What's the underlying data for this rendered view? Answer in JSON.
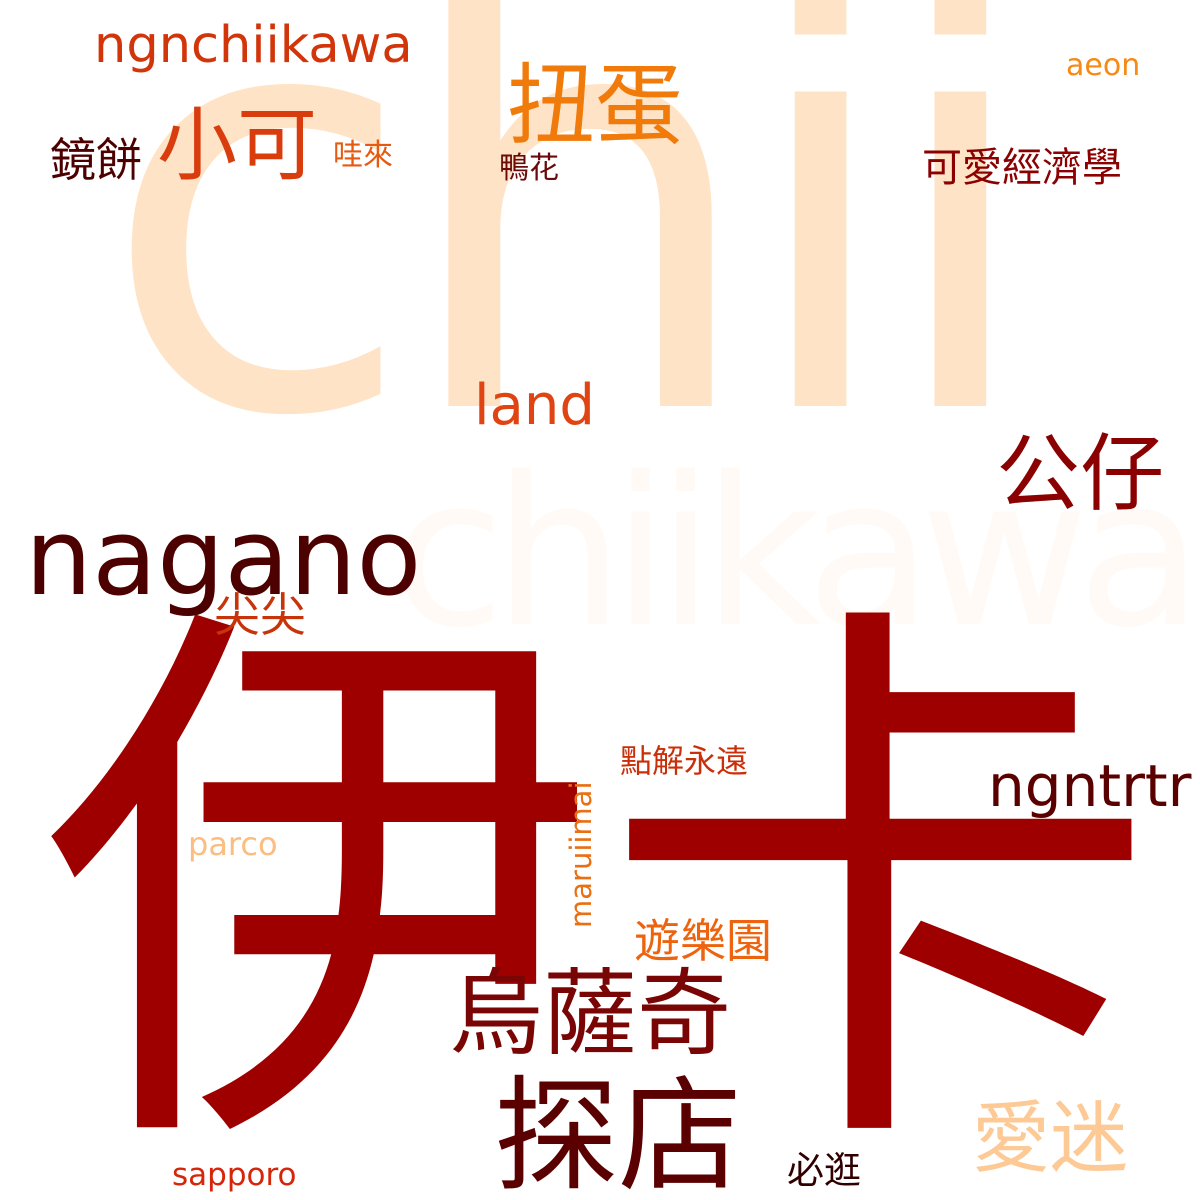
{
  "words": [
    {
      "id": "chii",
      "text": "chii",
      "color": "#ffe3c6"
    },
    {
      "id": "chiikawa",
      "text": "chiikawa",
      "color": "#fffaf5"
    },
    {
      "id": "ika",
      "text": "伊卡",
      "color": "#9e0000"
    },
    {
      "id": "ngnchiikawa",
      "text": "ngnchiikawa",
      "color": "#d2350a"
    },
    {
      "id": "niudan",
      "text": "扭蛋",
      "color": "#f07a0a"
    },
    {
      "id": "aeon",
      "text": "aeon",
      "color": "#f58a16"
    },
    {
      "id": "jingbing",
      "text": "鏡餅",
      "color": "#4d0000"
    },
    {
      "id": "xiaoke",
      "text": "小可",
      "color": "#d93c0d"
    },
    {
      "id": "walai",
      "text": "哇來",
      "color": "#e55a10"
    },
    {
      "id": "yahua",
      "text": "鴨花",
      "color": "#6b0a0a"
    },
    {
      "id": "keai-jingjixue",
      "text": "可愛經濟學",
      "color": "#8b0000"
    },
    {
      "id": "land",
      "text": "land",
      "color": "#df4412"
    },
    {
      "id": "gongzai",
      "text": "公仔",
      "color": "#8b0000"
    },
    {
      "id": "nagano",
      "text": "nagano",
      "color": "#4d0000"
    },
    {
      "id": "jianjian",
      "text": "尖尖",
      "color": "#c7340a"
    },
    {
      "id": "dianjie-yongyuan",
      "text": "點解永遠",
      "color": "#c9300a"
    },
    {
      "id": "ngntrtr",
      "text": "ngntrtr",
      "color": "#5a0000"
    },
    {
      "id": "maruiimai",
      "text": "maruiimai",
      "color": "#ea6f12"
    },
    {
      "id": "parco",
      "text": "parco",
      "color": "#fbbd80"
    },
    {
      "id": "youleyuan",
      "text": "遊樂園",
      "color": "#ee640e"
    },
    {
      "id": "wusaqi",
      "text": "烏薩奇",
      "color": "#7a0505"
    },
    {
      "id": "tandian",
      "text": "探店",
      "color": "#5a0000"
    },
    {
      "id": "aimi",
      "text": "愛迷",
      "color": "#fdc995"
    },
    {
      "id": "biguang",
      "text": "必逛",
      "color": "#300000"
    },
    {
      "id": "sapporo",
      "text": "sapporo",
      "color": "#d5250a"
    }
  ]
}
